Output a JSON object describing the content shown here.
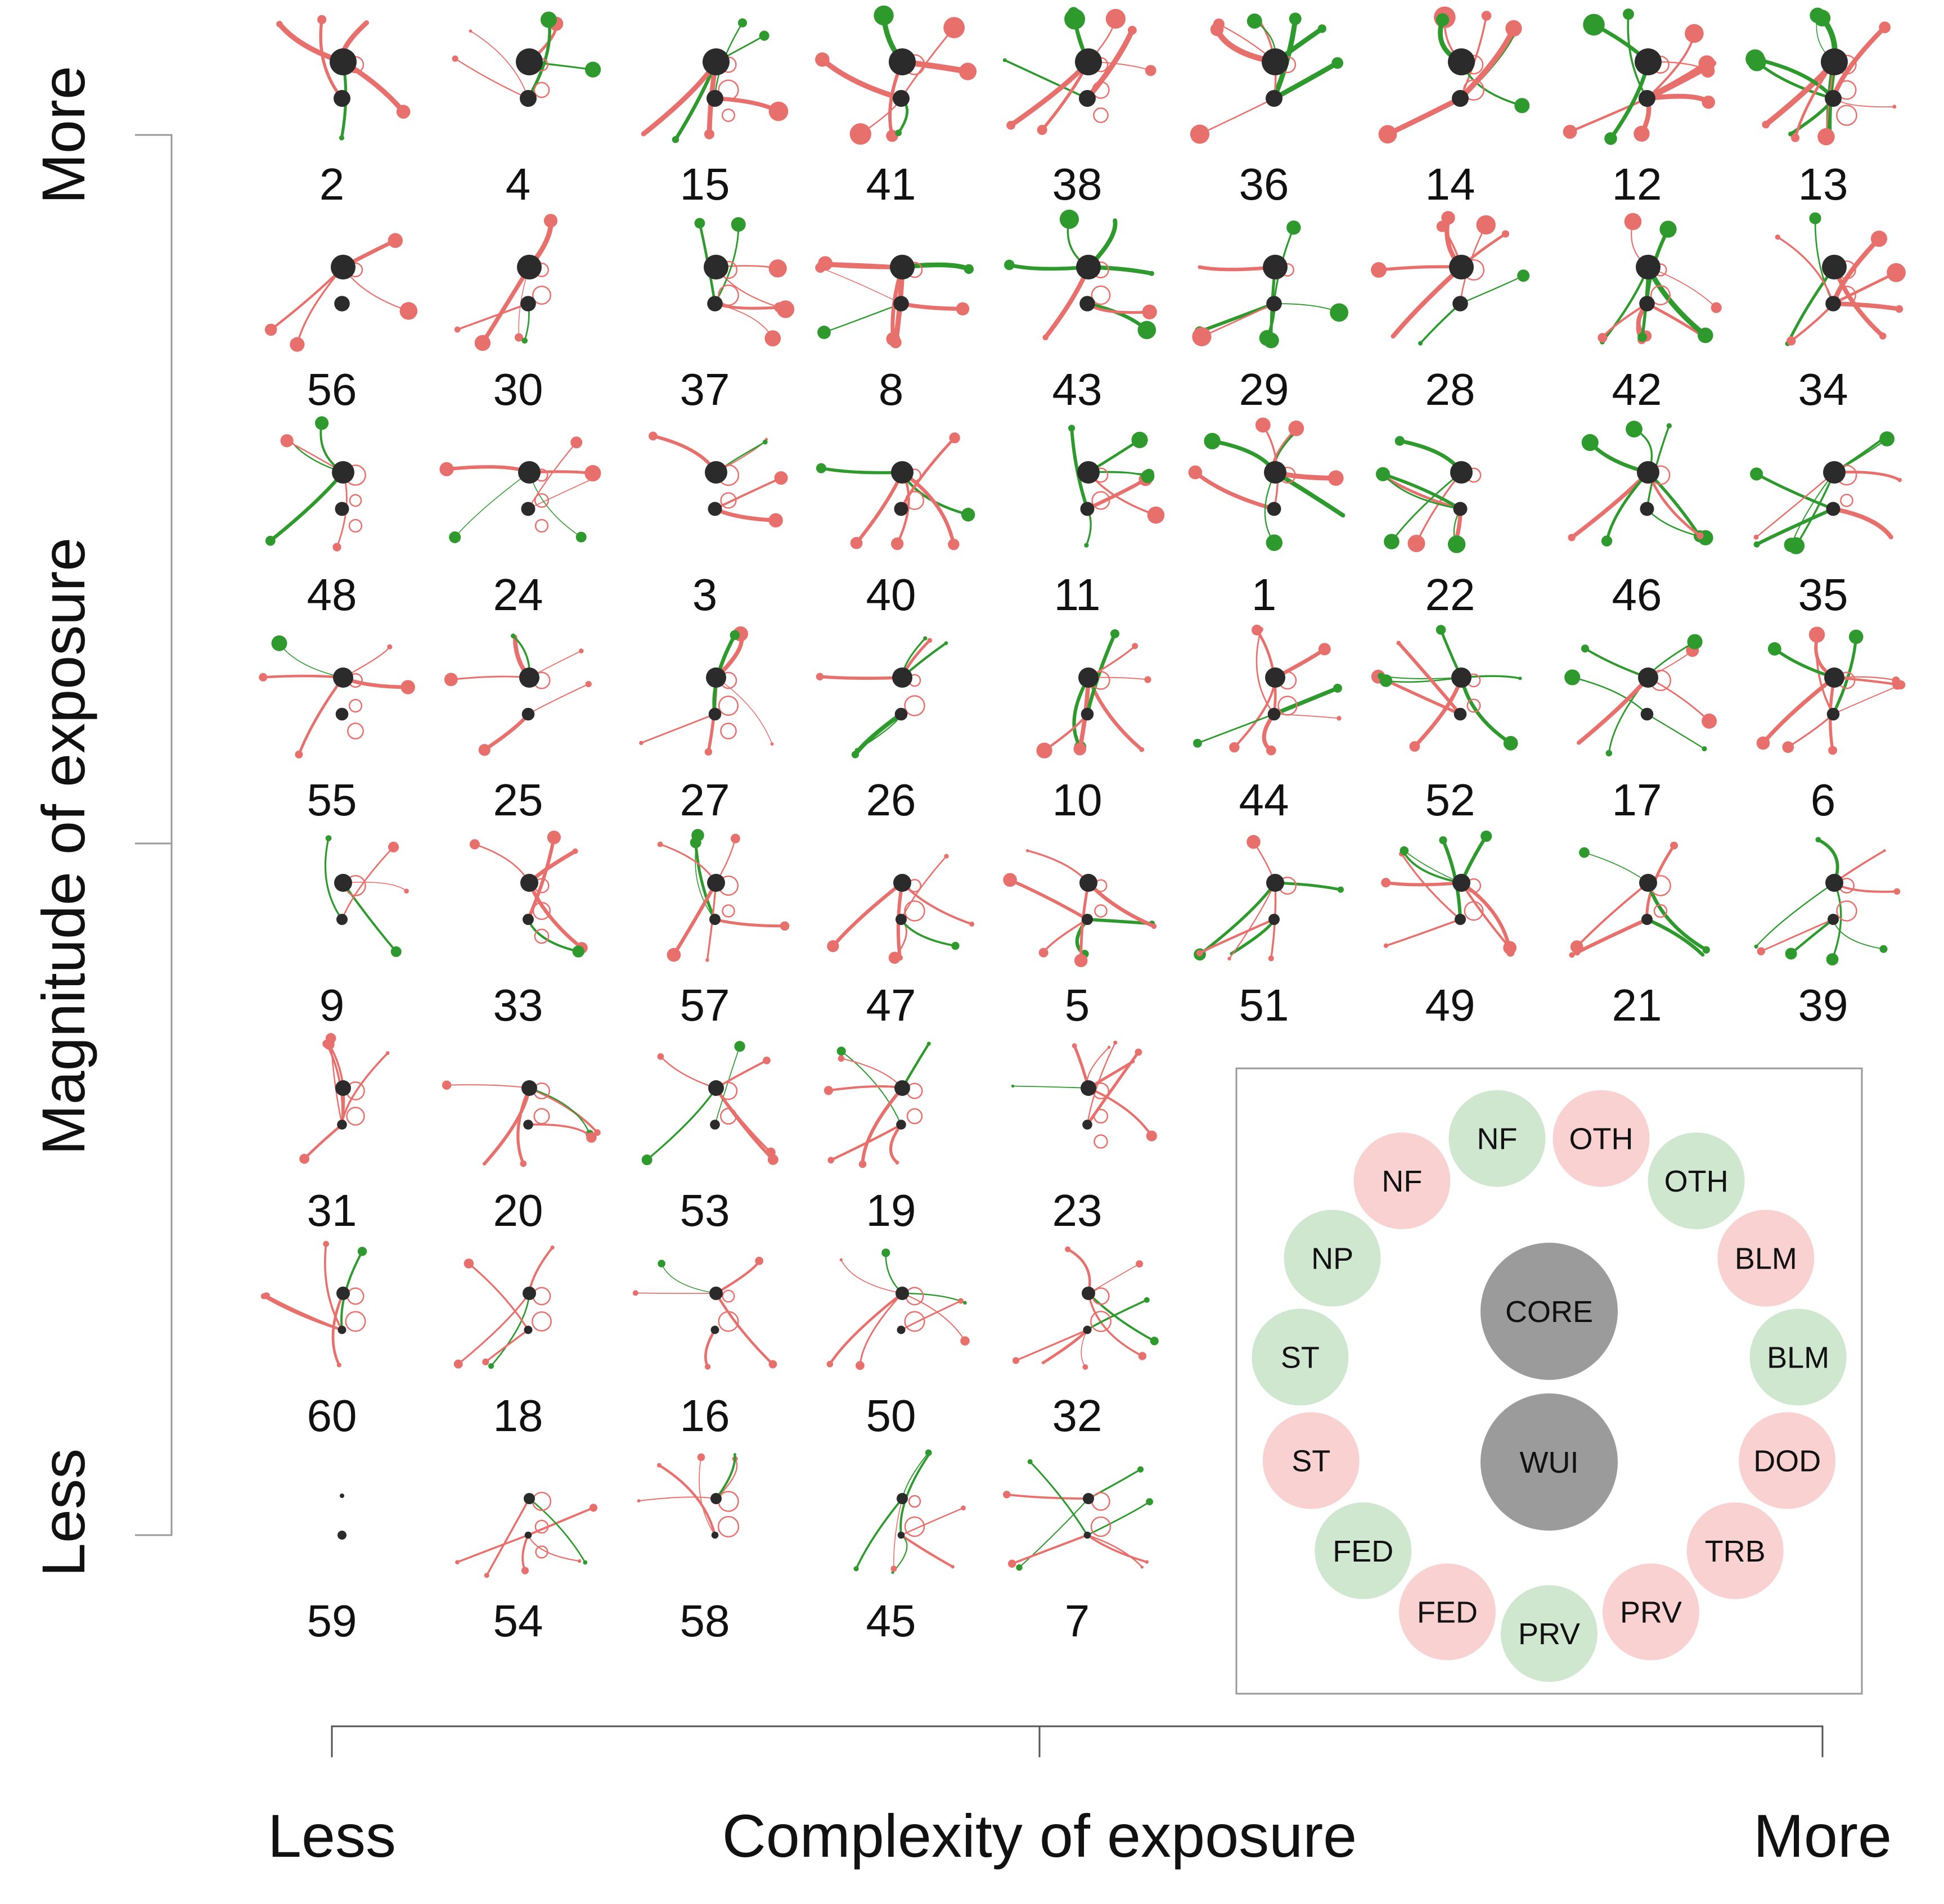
{
  "colors": {
    "red_edge": "#e8706c",
    "green_edge": "#2e9a2e",
    "dark_node": "#2b2b2b",
    "red_fill": "#f9d1d1",
    "green_fill": "#cfe6cf",
    "grey_fill": "#9b9b9b",
    "bracket": "#999999"
  },
  "axis": {
    "y_title": "Magnitude of exposure",
    "y_top": "More",
    "y_bottom": "Less",
    "x_title": "Complexity of exposure",
    "x_left": "Less",
    "x_right": "More"
  },
  "grid": {
    "rows": [
      [
        "2",
        "4",
        "15",
        "41",
        "38",
        "36",
        "14",
        "12",
        "13"
      ],
      [
        "56",
        "30",
        "37",
        "8",
        "43",
        "29",
        "28",
        "42",
        "34"
      ],
      [
        "48",
        "24",
        "3",
        "40",
        "11",
        "1",
        "22",
        "46",
        "35"
      ],
      [
        "55",
        "25",
        "27",
        "26",
        "10",
        "44",
        "52",
        "17",
        "6"
      ],
      [
        "9",
        "33",
        "57",
        "47",
        "5",
        "51",
        "49",
        "21",
        "39"
      ],
      [
        "31",
        "20",
        "53",
        "19",
        "23"
      ],
      [
        "60",
        "18",
        "16",
        "50",
        "32"
      ],
      [
        "59",
        "54",
        "58",
        "45",
        "7"
      ]
    ]
  },
  "legend": {
    "center_nodes": [
      {
        "label": "CORE",
        "type": "grey"
      },
      {
        "label": "WUI",
        "type": "grey"
      }
    ],
    "ring_nodes": [
      {
        "label": "OTH",
        "type": "red"
      },
      {
        "label": "OTH",
        "type": "green"
      },
      {
        "label": "BLM",
        "type": "red"
      },
      {
        "label": "BLM",
        "type": "green"
      },
      {
        "label": "DOD",
        "type": "red"
      },
      {
        "label": "TRB",
        "type": "red"
      },
      {
        "label": "PRV",
        "type": "red"
      },
      {
        "label": "PRV",
        "type": "green"
      },
      {
        "label": "FED",
        "type": "red"
      },
      {
        "label": "FED",
        "type": "green"
      },
      {
        "label": "ST",
        "type": "red"
      },
      {
        "label": "ST",
        "type": "green"
      },
      {
        "label": "NP",
        "type": "green"
      },
      {
        "label": "NF",
        "type": "red"
      },
      {
        "label": "NF",
        "type": "green"
      }
    ]
  }
}
